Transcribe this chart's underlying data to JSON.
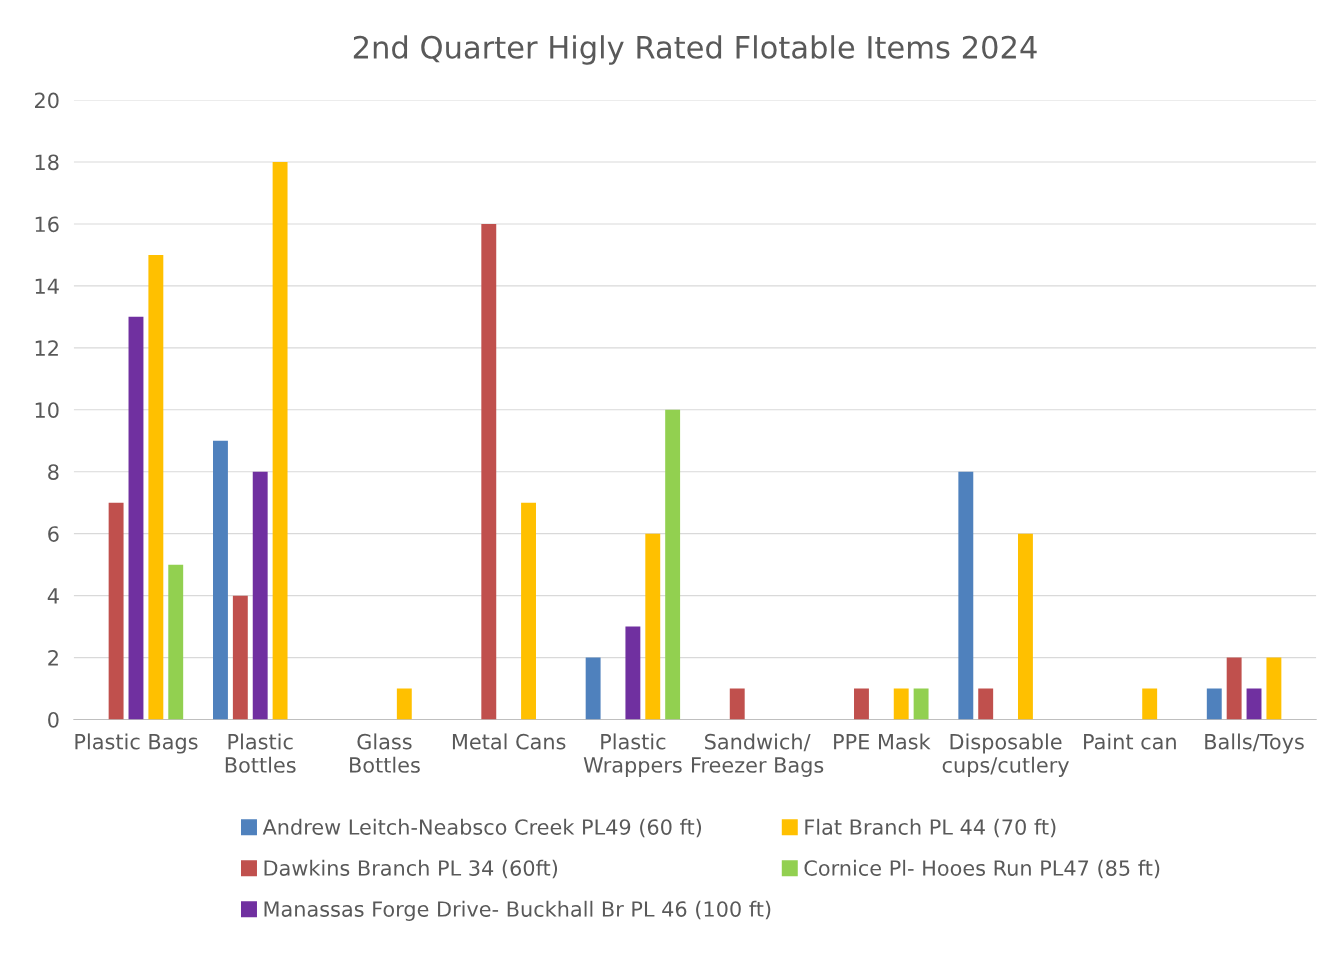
{
  "chart_data": {
    "type": "bar",
    "title": "2nd Quarter Higly Rated Flotable Items 2024",
    "categories": [
      "Plastic Bags",
      "Plastic\nBottles",
      "Glass\nBottles",
      "Metal Cans",
      "Plastic\nWrappers",
      "Sandwich/\nFreezer Bags",
      "PPE Mask",
      "Disposable\ncups/cutlery",
      "Paint can",
      "Balls/Toys"
    ],
    "series": [
      {
        "name": "Andrew Leitch-Neabsco Creek PL49 (60 ft)",
        "color": "#4f81bd",
        "values": [
          0,
          9,
          0,
          0,
          2,
          0,
          0,
          8,
          0,
          1
        ]
      },
      {
        "name": "Dawkins Branch PL 34 (60ft)",
        "color": "#c0504d",
        "values": [
          7,
          4,
          0,
          16,
          0,
          1,
          1,
          1,
          0,
          2
        ]
      },
      {
        "name": "Manassas Forge Drive- Buckhall Br PL 46 (100 ft)",
        "color": "#7030a0",
        "values": [
          13,
          8,
          0,
          0,
          3,
          0,
          0,
          0,
          0,
          1
        ]
      },
      {
        "name": "Flat Branch PL 44 (70 ft)",
        "color": "#ffc000",
        "values": [
          15,
          18,
          1,
          7,
          6,
          0,
          1,
          6,
          1,
          2
        ]
      },
      {
        "name": "Cornice Pl- Hooes Run PL47 (85 ft)",
        "color": "#92d050",
        "values": [
          5,
          0,
          0,
          0,
          10,
          0,
          1,
          0,
          0,
          0
        ]
      }
    ],
    "ylim": [
      0,
      20
    ],
    "yticks": [
      0,
      2,
      4,
      6,
      8,
      10,
      12,
      14,
      16,
      18,
      20
    ],
    "grid": "y",
    "legend": "bottom"
  }
}
